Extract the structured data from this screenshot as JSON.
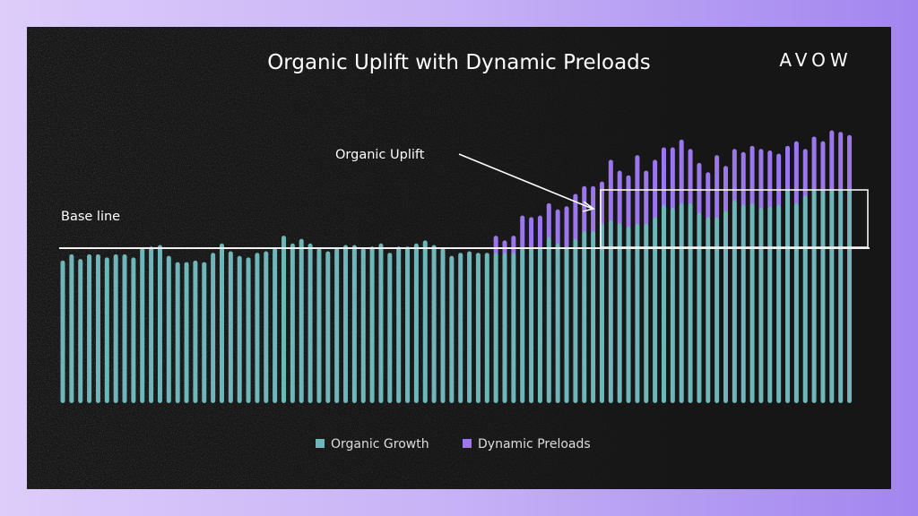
{
  "chart_data": {
    "type": "bar",
    "stacked": true,
    "title": "Organic Uplift with Dynamic Preloads",
    "brand": "AVOW",
    "annotations": {
      "baseline_label": "Base line",
      "uplift_label": "Organic Uplift",
      "baseline_value": 100
    },
    "xlabel": "",
    "ylabel": "",
    "ylim": [
      0,
      180
    ],
    "grid": false,
    "legend_position": "bottom-center",
    "series": [
      {
        "name": "Organic Growth",
        "color": "#6fb6ba",
        "values": [
          92,
          96,
          93,
          96,
          96,
          94,
          96,
          96,
          94,
          100,
          101,
          102,
          95,
          91,
          91,
          92,
          91,
          97,
          103,
          98,
          95,
          94,
          97,
          98,
          100,
          108,
          103,
          106,
          103,
          100,
          98,
          100,
          102,
          102,
          100,
          101,
          103,
          97,
          101,
          101,
          103,
          105,
          102,
          100,
          95,
          97,
          98,
          97,
          97,
          97,
          97,
          97,
          100,
          100,
          100,
          107,
          103,
          101,
          106,
          111,
          111,
          116,
          118,
          116,
          114,
          116,
          116,
          120,
          128,
          126,
          129,
          129,
          123,
          120,
          120,
          124,
          131,
          128,
          129,
          126,
          127,
          128,
          138,
          129,
          134,
          138,
          138,
          138,
          138,
          138
        ]
      },
      {
        "name": "Dynamic Preloads",
        "color": "#9b76ec",
        "values": [
          0,
          0,
          0,
          0,
          0,
          0,
          0,
          0,
          0,
          0,
          0,
          0,
          0,
          0,
          0,
          0,
          0,
          0,
          0,
          0,
          0,
          0,
          0,
          0,
          0,
          0,
          0,
          0,
          0,
          0,
          0,
          0,
          0,
          0,
          0,
          0,
          0,
          0,
          0,
          0,
          0,
          0,
          0,
          0,
          0,
          0,
          0,
          0,
          0,
          11,
          8,
          11,
          21,
          20,
          21,
          22,
          22,
          26,
          29,
          29,
          29,
          27,
          39,
          34,
          33,
          44,
          34,
          37,
          37,
          39,
          41,
          35,
          32,
          29,
          40,
          29,
          33,
          34,
          37,
          38,
          36,
          33,
          28,
          40,
          30,
          34,
          31,
          38,
          37,
          35
        ]
      }
    ]
  }
}
